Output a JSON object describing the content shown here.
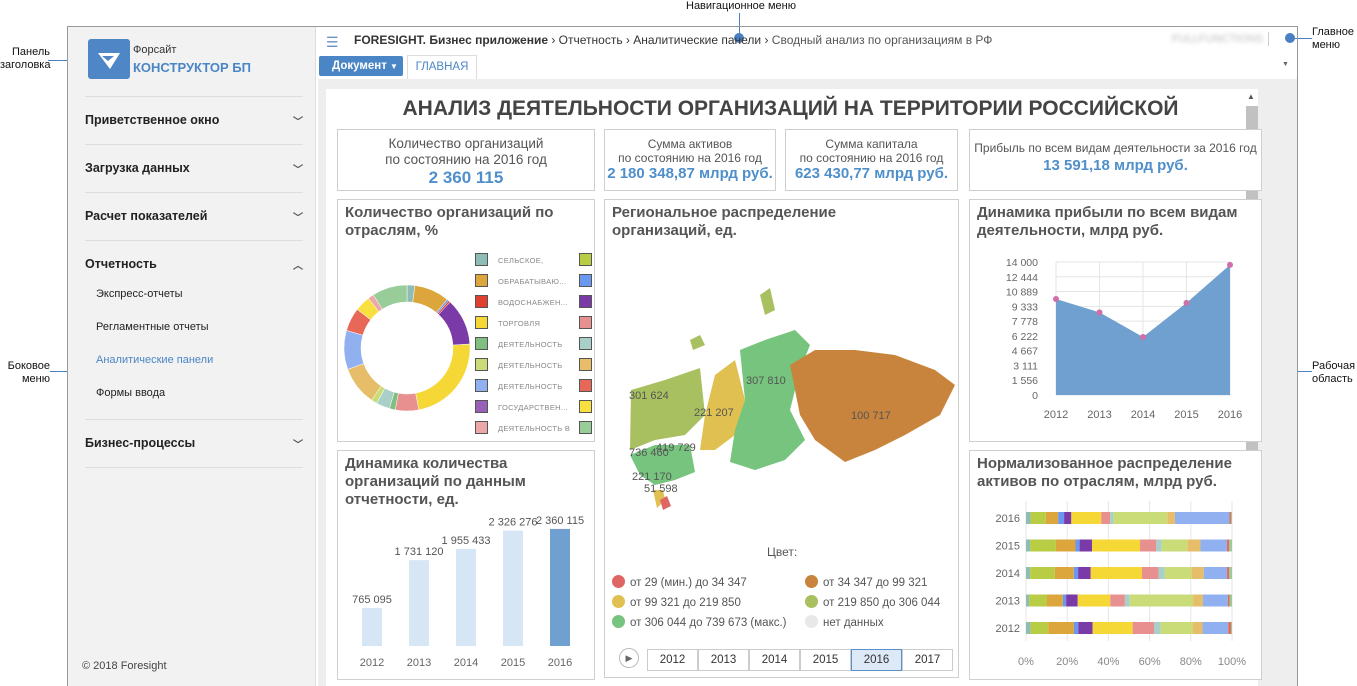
{
  "annotations": {
    "header_panel": "Панель заголовка",
    "nav_menu": "Навигационное меню",
    "main_menu": "Главное меню",
    "side_menu": "Боковое меню",
    "work_area": "Рабочая область"
  },
  "logo": {
    "line1": "Форсайт",
    "line2": "КОНСТРУКТОР БП"
  },
  "sidebar": {
    "sections": [
      {
        "label": "Приветственное окно"
      },
      {
        "label": "Загрузка данных"
      },
      {
        "label": "Расчет показателей"
      },
      {
        "label": "Отчетность",
        "expanded": true,
        "items": [
          "Экспресс-отчеты",
          "Регламентные отчеты",
          "Аналитические панели",
          "Формы ввода"
        ],
        "active": "Аналитические панели"
      },
      {
        "label": "Бизнес-процессы"
      }
    ],
    "footer": "© 2018 Foresight"
  },
  "breadcrumb": {
    "items": [
      "FORESIGHT. Бизнес приложение",
      "Отчетность",
      "Аналитические панели"
    ],
    "current": "Сводный анализ по организациям в РФ",
    "user": "FULLFUNCTIONS"
  },
  "toolbar": {
    "document_button": "Документ",
    "tab": "ГЛАВНАЯ"
  },
  "dashboard": {
    "title": "АНАЛИЗ ДЕЯТЕЛЬНОСТИ ОРГАНИЗАЦИЙ НА ТЕРРИТОРИИ РОССИЙСКОЙ",
    "kpis": [
      {
        "l1": "Количество организаций",
        "l2": "по состоянию на 2016 год",
        "value": "2 360 115"
      },
      {
        "l1": "Сумма активов",
        "l2": "по состоянию на 2016 год",
        "value": "2 180 348,87 млрд руб."
      },
      {
        "l1": "Сумма капитала",
        "l2": "по состоянию на 2016 год",
        "value": "623 430,77 млрд руб."
      },
      {
        "l1": "Прибыль по всем видам деятельности за 2016 год",
        "l2": "",
        "value": "13 591,18 млрд руб."
      }
    ],
    "map": {
      "title": "Региональное распределение организаций, ед.",
      "labels": [
        "301 624",
        "221 207",
        "307 810",
        "100 717",
        "419 729",
        "736 460",
        "221 170",
        "51 598"
      ],
      "legend_title": "Цвет:",
      "legend": [
        {
          "label": "от 29 (мин.) до 34 347",
          "color": "#e06666"
        },
        {
          "label": "от 34 347 до 99 321",
          "color": "#c8843c"
        },
        {
          "label": "от 99 321 до 219 850",
          "color": "#e0c050"
        },
        {
          "label": "от 219 850 до 306 044",
          "color": "#a8c060"
        },
        {
          "label": "от 306 044 до 739 673 (макс.)",
          "color": "#76c47e"
        },
        {
          "label": "нет данных",
          "color": "#e8e8e8"
        }
      ],
      "years": [
        "2012",
        "2013",
        "2014",
        "2015",
        "2016",
        "2017"
      ],
      "selected_year": "2016"
    }
  },
  "chart_data": [
    {
      "type": "pie",
      "title": "Количество организаций по отраслям, %",
      "legend": [
        "СЕЛЬСКОЕ,",
        "ОБРАБАТЫВАЮ...",
        "ВОДОСНАБЖЕН...",
        "ТОРГОВЛЯ",
        "ДЕЯТЕЛЬНОСТЬ",
        "ДЕЯТЕЛЬНОСТЬ",
        "ДЕЯТЕЛЬНОСТЬ",
        "ГОСУДАРСТВЕН...",
        "ДЕЯТЕЛЬНОСТЬ В"
      ],
      "legend_colors": [
        "#8fbcb4",
        "#dca63c",
        "#e04030",
        "#f5d835",
        "#7fbf7f",
        "#c9dc78",
        "#90b0f0",
        "#9a60b8",
        "#eca8a8",
        "#b8cc44",
        "#6a98f0",
        "#7a3aa8",
        "#e89090",
        "#a8d0c8",
        "#e6be6a",
        "#e86858",
        "#f8e040",
        "#98cc98"
      ],
      "slices": [
        {
          "value": 2,
          "color": "#8fbcb4"
        },
        {
          "value": 9,
          "color": "#dca63c"
        },
        {
          "value": 0.5,
          "color": "#6a98f0"
        },
        {
          "value": 0.5,
          "color": "#e04030"
        },
        {
          "value": 12,
          "color": "#7a3aa8"
        },
        {
          "value": 23,
          "color": "#f5d835"
        },
        {
          "value": 6,
          "color": "#e89090"
        },
        {
          "value": 1.5,
          "color": "#7fbf7f"
        },
        {
          "value": 3.5,
          "color": "#a8d0c8"
        },
        {
          "value": 1.5,
          "color": "#c9dc78"
        },
        {
          "value": 10,
          "color": "#e6be6a"
        },
        {
          "value": 10,
          "color": "#90b0f0"
        },
        {
          "value": 6,
          "color": "#e86858"
        },
        {
          "value": 4,
          "color": "#f8e040"
        },
        {
          "value": 1.5,
          "color": "#eca8a8"
        },
        {
          "value": 9,
          "color": "#98cc98"
        }
      ]
    },
    {
      "type": "area",
      "title": "Динамика прибыли по всем видам деятельности, млрд руб.",
      "x": [
        "2012",
        "2013",
        "2014",
        "2015",
        "2016"
      ],
      "values": [
        10100,
        8700,
        6100,
        9700,
        13700
      ],
      "yticks": [
        "14 000",
        "12 444",
        "10 889",
        "9 333",
        "7 778",
        "6 222",
        "4 667",
        "3 111",
        "1 556",
        "0"
      ],
      "ylim": [
        0,
        14000
      ],
      "color": "#6fa0cf"
    },
    {
      "type": "bar",
      "title": "Динамика количества организаций по данным отчетности, ед.",
      "categories": [
        "2012",
        "2013",
        "2014",
        "2015",
        "2016"
      ],
      "values": [
        765095,
        1731120,
        1955433,
        2326276,
        2360115
      ],
      "labels": [
        "765 095",
        "1 731 120",
        "1 955 433",
        "2 326 276",
        "2 360 115"
      ],
      "highlight": "2016"
    },
    {
      "type": "bar",
      "stacked": "normalized",
      "orientation": "horizontal",
      "title": "Нормализованное распределение активов по отраслям, млрд руб.",
      "categories": [
        "2016",
        "2015",
        "2014",
        "2013",
        "2012"
      ],
      "xticks": [
        "0%",
        "20%",
        "40%",
        "60%",
        "80%",
        "100%"
      ],
      "colors": [
        "#8fbcb4",
        "#b8cc44",
        "#dca63c",
        "#6a98f0",
        "#7a3aa8",
        "#f5d835",
        "#e89090",
        "#a8d0c8",
        "#c9dc78",
        "#e6be6a",
        "#90b0f0",
        "#e86858",
        "#98cc98"
      ],
      "series_values": [
        [
          2.2,
          7.4,
          6,
          2.9,
          3.5,
          14.5,
          4.3,
          1.6,
          26.2,
          3.7,
          26.4,
          0.8,
          0.5
        ],
        [
          2,
          12.5,
          9.5,
          2,
          6,
          23.3,
          7.9,
          2.6,
          12.4,
          6.4,
          12.9,
          1.1,
          1.3
        ],
        [
          2,
          12,
          9.2,
          2.1,
          6.1,
          24.9,
          8,
          3.1,
          13,
          5.9,
          11.3,
          1.1,
          1.3
        ],
        [
          1.5,
          8.7,
          7.7,
          1.6,
          5.6,
          15.8,
          7.1,
          2.4,
          30.7,
          4.8,
          12.1,
          0.8,
          1.2
        ],
        [
          2.2,
          8.5,
          12.4,
          2.1,
          6.9,
          19.3,
          10.3,
          3.2,
          15.4,
          4.8,
          12.4,
          1.3,
          0.5
        ]
      ]
    }
  ]
}
